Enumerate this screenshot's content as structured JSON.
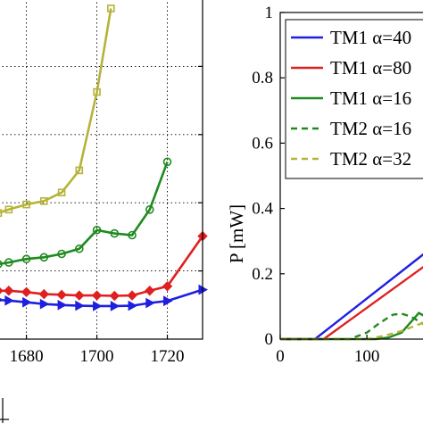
{
  "chart_data": [
    {
      "type": "line",
      "panel": "left",
      "title": "",
      "xlabel": "",
      "ylabel": "",
      "x_ticks": [
        "1680",
        "1700",
        "1720"
      ],
      "xlim": [
        1672,
        1730
      ],
      "ylim": [
        0,
        10
      ],
      "grid": true,
      "series": [
        {
          "color": "#b5b33a",
          "marker": "square",
          "x": [
            1672,
            1675,
            1680,
            1685,
            1690,
            1695,
            1700,
            1704
          ],
          "y": [
            3.7,
            3.8,
            3.95,
            4.05,
            4.3,
            4.95,
            7.25,
            9.7
          ]
        },
        {
          "color": "#1f8a1f",
          "marker": "circle",
          "x": [
            1672,
            1675,
            1680,
            1685,
            1690,
            1695,
            1700,
            1705,
            1710,
            1715,
            1720
          ],
          "y": [
            2.2,
            2.25,
            2.35,
            2.4,
            2.5,
            2.65,
            3.2,
            3.1,
            3.05,
            3.8,
            5.2
          ]
        },
        {
          "color": "#e02020",
          "marker": "diamond",
          "x": [
            1672,
            1675,
            1680,
            1685,
            1690,
            1695,
            1700,
            1705,
            1710,
            1715,
            1720,
            1730
          ],
          "y": [
            1.42,
            1.42,
            1.38,
            1.32,
            1.3,
            1.28,
            1.28,
            1.27,
            1.28,
            1.42,
            1.55,
            3.02
          ]
        },
        {
          "color": "#1f1fe0",
          "marker": "triangle-right",
          "x": [
            1672,
            1675,
            1680,
            1685,
            1690,
            1695,
            1700,
            1705,
            1710,
            1715,
            1720,
            1730
          ],
          "y": [
            1.15,
            1.13,
            1.08,
            1.03,
            1.0,
            0.98,
            0.97,
            0.97,
            0.98,
            1.06,
            1.12,
            1.45
          ]
        }
      ]
    },
    {
      "type": "line",
      "panel": "right",
      "title": "",
      "xlabel": "",
      "ylabel": "P [mW]",
      "x_ticks": [
        "0",
        "100"
      ],
      "y_ticks": [
        "0",
        "0.2",
        "0.4",
        "0.6",
        "0.8",
        "1"
      ],
      "xlim": [
        0,
        175
      ],
      "ylim": [
        0,
        1
      ],
      "grid": false,
      "legend_position": "top-right",
      "series": [
        {
          "name": "TM1 α=40",
          "color": "#1f1fe0",
          "dash": "solid",
          "x": [
            0,
            40,
            175
          ],
          "y": [
            0,
            0,
            0.28
          ]
        },
        {
          "name": "TM1 α=80",
          "color": "#e02020",
          "dash": "solid",
          "x": [
            0,
            50,
            175
          ],
          "y": [
            0,
            0,
            0.24
          ]
        },
        {
          "name": "TM1 α=16",
          "color": "#1f8a1f",
          "dash": "solid",
          "x": [
            0,
            110,
            125,
            140,
            150,
            160,
            170,
            175
          ],
          "y": [
            0,
            0,
            0.005,
            0.02,
            0.05,
            0.08,
            0.065,
            0.06
          ]
        },
        {
          "name": "TM2 α=16",
          "color": "#1f8a1f",
          "dash": "dashed",
          "x": [
            0,
            80,
            100,
            115,
            130,
            140,
            150,
            160,
            175
          ],
          "y": [
            0,
            0,
            0.02,
            0.05,
            0.075,
            0.078,
            0.07,
            0.055,
            0.03
          ]
        },
        {
          "name": "TM2 α=32",
          "color": "#b5b33a",
          "dash": "dashed",
          "x": [
            0,
            100,
            120,
            140,
            160,
            175
          ],
          "y": [
            0,
            0,
            0.01,
            0.025,
            0.045,
            0.06
          ]
        }
      ]
    }
  ]
}
